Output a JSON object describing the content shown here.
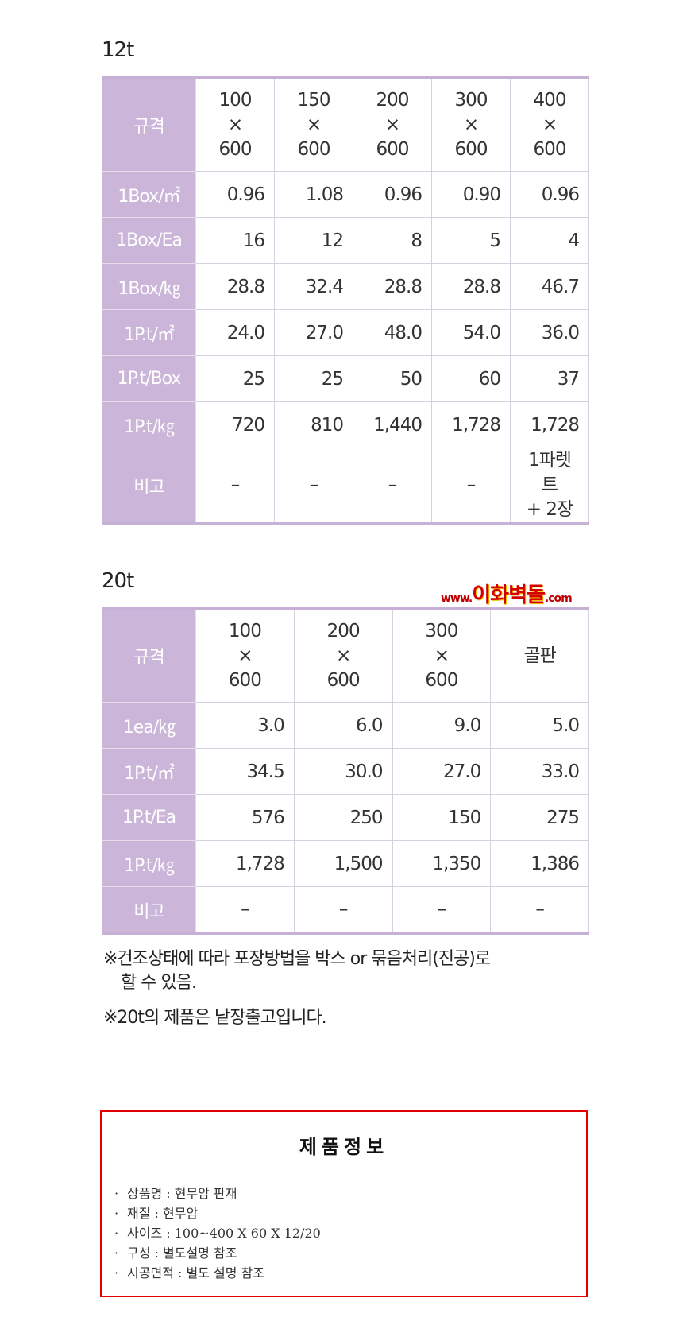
{
  "colors": {
    "header_bg": "#cbb5d8",
    "border_red": "#e00000",
    "logo_red": "#d40000"
  },
  "table12": {
    "title": "12t",
    "label_header": "규격",
    "columns": [
      "100\n×\n600",
      "150\n×\n600",
      "200\n×\n600",
      "300\n×\n600",
      "400\n×\n600"
    ],
    "rows": [
      {
        "label": "1Box/㎡",
        "values": [
          "0.96",
          "1.08",
          "0.96",
          "0.90",
          "0.96"
        ]
      },
      {
        "label": "1Box/Ea",
        "values": [
          "16",
          "12",
          "8",
          "5",
          "4"
        ]
      },
      {
        "label": "1Box/㎏",
        "values": [
          "28.8",
          "32.4",
          "28.8",
          "28.8",
          "46.7"
        ]
      },
      {
        "label": "1P.t/㎡",
        "values": [
          "24.0",
          "27.0",
          "48.0",
          "54.0",
          "36.0"
        ]
      },
      {
        "label": "1P.t/Box",
        "values": [
          "25",
          "25",
          "50",
          "60",
          "37"
        ]
      },
      {
        "label": "1P.t/㎏",
        "values": [
          "720",
          "810",
          "1,440",
          "1,728",
          "1,728"
        ]
      },
      {
        "label": "비고",
        "values": [
          "–",
          "–",
          "–",
          "–",
          "1파렛트\n+ 2장"
        ],
        "center": true
      }
    ]
  },
  "logo": {
    "prefix": "www.",
    "name": "이화벽돌",
    "suffix": ".com"
  },
  "table20": {
    "title": "20t",
    "label_header": "규격",
    "columns": [
      "100\n×\n600",
      "200\n×\n600",
      "300\n×\n600",
      "골판"
    ],
    "rows": [
      {
        "label": "1ea/㎏",
        "values": [
          "3.0",
          "6.0",
          "9.0",
          "5.0"
        ]
      },
      {
        "label": "1P.t/㎡",
        "values": [
          "34.5",
          "30.0",
          "27.0",
          "33.0"
        ]
      },
      {
        "label": "1P.t/Ea",
        "values": [
          "576",
          "250",
          "150",
          "275"
        ]
      },
      {
        "label": "1P.t/㎏",
        "values": [
          "1,728",
          "1,500",
          "1,350",
          "1,386"
        ]
      },
      {
        "label": "비고",
        "values": [
          "–",
          "–",
          "–",
          "–"
        ],
        "center": true
      }
    ]
  },
  "notes": {
    "note1_line1": "※건조상태에 따라 포장방법을 박스 or 묶음처리(진공)로",
    "note1_line2": "할 수 있음.",
    "note2": "※20t의 제품은 낱장출고입니다."
  },
  "product_info": {
    "title": "제품정보",
    "items": [
      "상품명 : 현무암 판재",
      "재질 : 현무암",
      "사이즈 : 100~400 X 60 X 12/20",
      "구성 : 별도설명 참조",
      "시공면적 : 별도 설명 참조"
    ]
  }
}
